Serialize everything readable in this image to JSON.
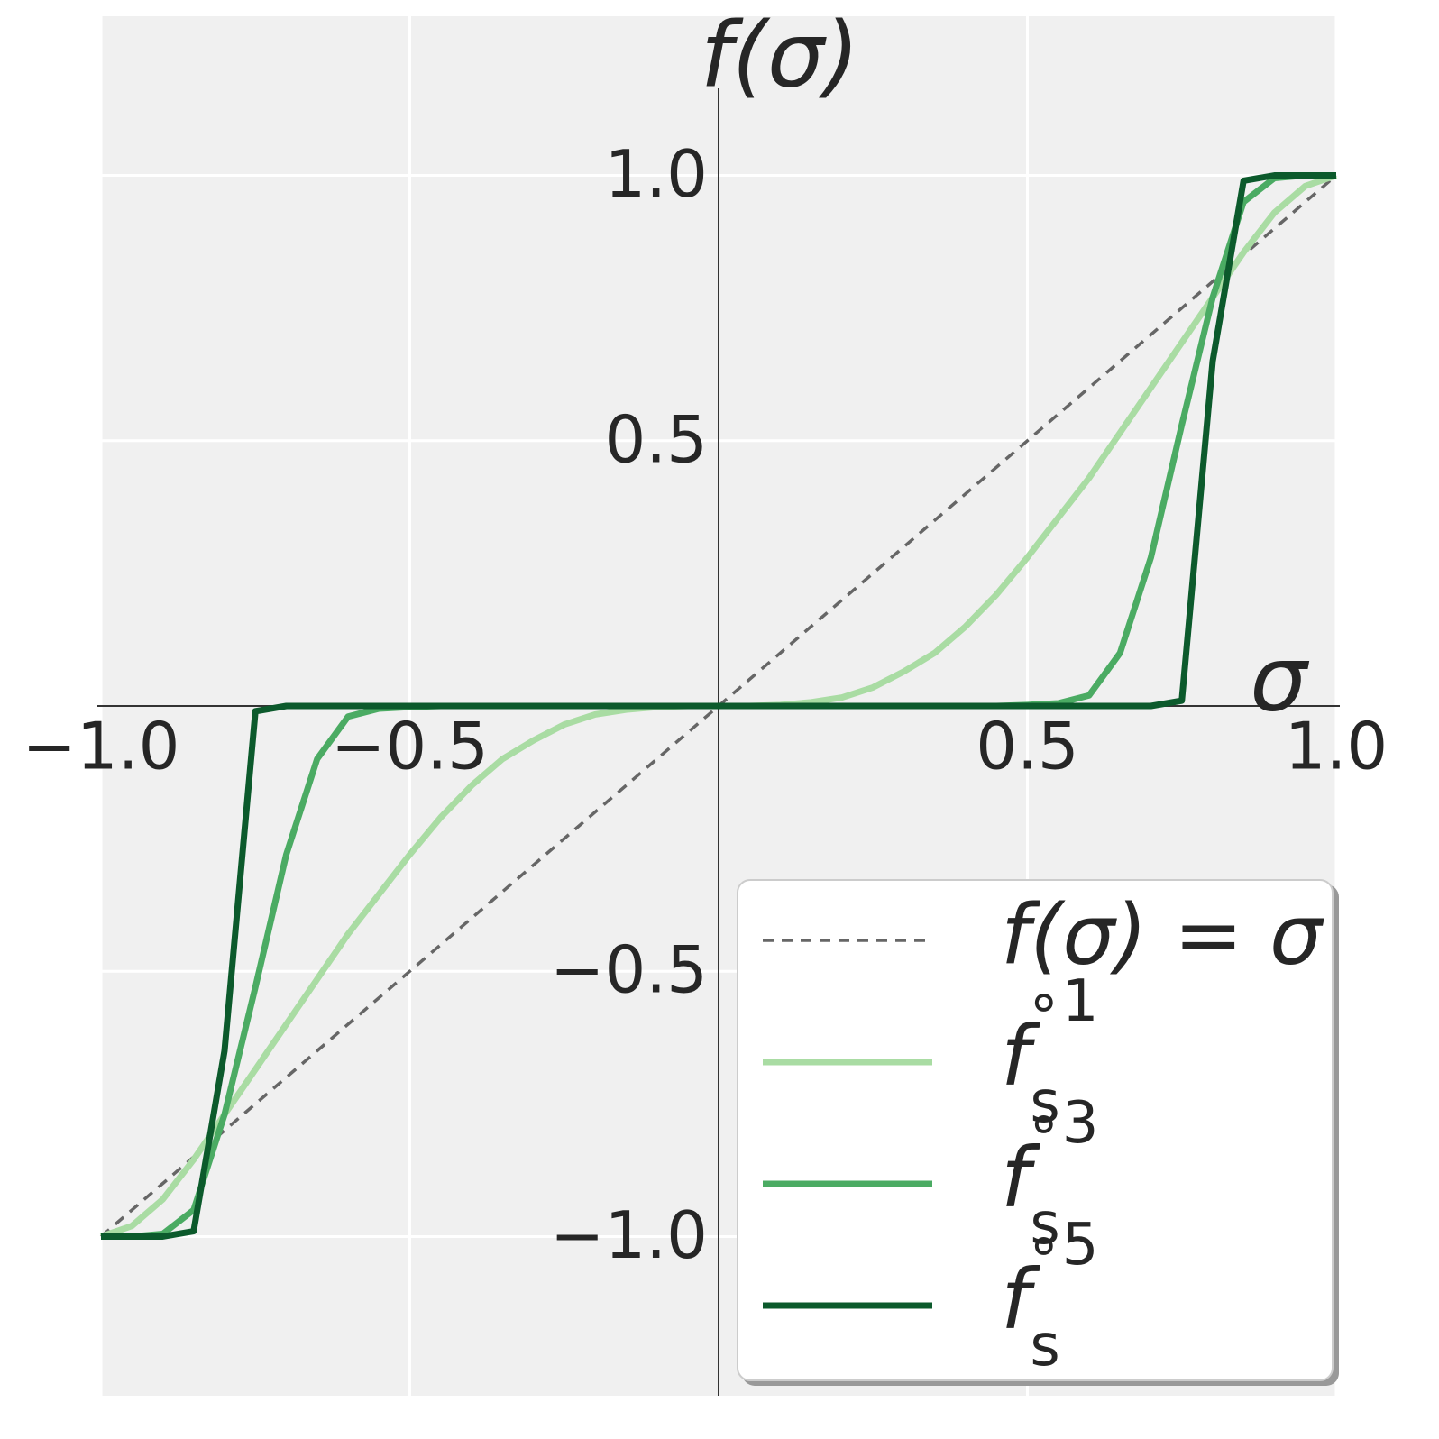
{
  "chart_data": {
    "type": "line",
    "x_label": "σ",
    "y_label": "f(σ)",
    "x": [
      -1,
      -0.95,
      -0.9,
      -0.85,
      -0.8,
      -0.75,
      -0.7,
      -0.65,
      -0.6,
      -0.55,
      -0.5,
      -0.45,
      -0.4,
      -0.35,
      -0.3,
      -0.25,
      -0.2,
      -0.15,
      -0.1,
      -0.05,
      0,
      0.05,
      0.1,
      0.15,
      0.2,
      0.25,
      0.3,
      0.35,
      0.4,
      0.45,
      0.5,
      0.55,
      0.6,
      0.65,
      0.7,
      0.75,
      0.8,
      0.85,
      0.9,
      0.95,
      1
    ],
    "series": [
      {
        "name": "f(σ) = σ",
        "color": "#666666",
        "dashed": true,
        "values": [
          -1,
          -0.95,
          -0.9,
          -0.85,
          -0.8,
          -0.75,
          -0.7,
          -0.65,
          -0.6,
          -0.55,
          -0.5,
          -0.45,
          -0.4,
          -0.35,
          -0.3,
          -0.25,
          -0.2,
          -0.15,
          -0.1,
          -0.05,
          0,
          0.05,
          0.1,
          0.15,
          0.2,
          0.25,
          0.3,
          0.35,
          0.4,
          0.45,
          0.5,
          0.55,
          0.6,
          0.65,
          0.7,
          0.75,
          0.8,
          0.85,
          0.9,
          0.95,
          1
        ]
      },
      {
        "name": "fs∘1",
        "color": "#a9dca3",
        "values": [
          -1,
          -0.98,
          -0.93,
          -0.855,
          -0.77,
          -0.685,
          -0.6,
          -0.515,
          -0.43,
          -0.355,
          -0.28,
          -0.21,
          -0.15,
          -0.1,
          -0.065,
          -0.035,
          -0.016,
          -0.007,
          -0.002,
          0,
          0,
          0,
          0.002,
          0.007,
          0.016,
          0.035,
          0.065,
          0.1,
          0.15,
          0.21,
          0.28,
          0.355,
          0.43,
          0.515,
          0.6,
          0.685,
          0.77,
          0.855,
          0.93,
          0.98,
          1
        ]
      },
      {
        "name": "fs∘3",
        "color": "#4bab63",
        "values": [
          -1,
          -1,
          -0.995,
          -0.95,
          -0.77,
          -0.53,
          -0.28,
          -0.1,
          -0.02,
          -0.005,
          -0.002,
          0,
          0,
          0,
          0,
          0,
          0,
          0,
          0,
          0,
          0,
          0,
          0,
          0,
          0,
          0,
          0,
          0,
          0,
          0,
          0.002,
          0.005,
          0.02,
          0.1,
          0.28,
          0.53,
          0.77,
          0.95,
          0.995,
          1,
          1
        ]
      },
      {
        "name": "fs∘5",
        "color": "#0c5a2c",
        "values": [
          -1,
          -1,
          -1,
          -0.99,
          -0.65,
          -0.01,
          0,
          0,
          0,
          0,
          0,
          0,
          0,
          0,
          0,
          0,
          0,
          0,
          0,
          0,
          0,
          0,
          0,
          0,
          0,
          0,
          0,
          0,
          0,
          0,
          0,
          0,
          0,
          0,
          0,
          0.01,
          0.65,
          0.99,
          1,
          1,
          1
        ]
      }
    ],
    "xlim": [
      -1,
      1
    ],
    "ylim": [
      -1.3,
      1.3
    ],
    "xticks": [
      {
        "value": -1,
        "label": "−1.0"
      },
      {
        "value": -0.5,
        "label": "−0.5"
      },
      {
        "value": 0.5,
        "label": "0.5"
      },
      {
        "value": 1,
        "label": "1.0"
      }
    ],
    "yticks": [
      {
        "value": -1,
        "label": "−1.0"
      },
      {
        "value": -0.5,
        "label": "−0.5"
      },
      {
        "value": 0.5,
        "label": "0.5"
      },
      {
        "value": 1,
        "label": "1.0"
      }
    ],
    "grid": true,
    "legend": "lower right"
  }
}
